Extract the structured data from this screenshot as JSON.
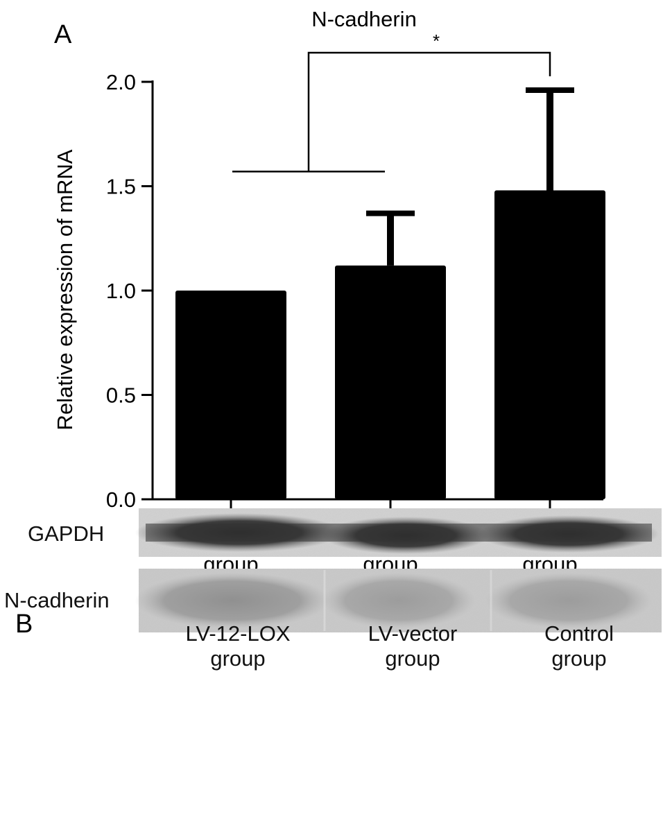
{
  "panel_a": {
    "label": "A"
  },
  "panel_b": {
    "label": "B",
    "lanes": [
      {
        "line1": "LV-12-LOX",
        "line2": "group"
      },
      {
        "line1": "LV-vector",
        "line2": "group"
      },
      {
        "line1": "Control",
        "line2": "group"
      }
    ],
    "rows": [
      {
        "label": "GAPDH"
      },
      {
        "label": "N-cadherin"
      }
    ]
  },
  "chart_data": {
    "type": "bar",
    "title": "N-cadherin",
    "ylabel": "Relative expression of mRNA",
    "xlabel": "",
    "categories": [
      [
        "Control",
        "group"
      ],
      [
        "LV-vector",
        "group"
      ],
      [
        "LV-12-LOX",
        "group"
      ]
    ],
    "values": [
      1.0,
      1.12,
      1.48
    ],
    "error_upper": [
      0,
      0.25,
      0.48
    ],
    "ylim": [
      0,
      2.0
    ],
    "yticks": [
      "0.0",
      "0.5",
      "1.0",
      "1.5",
      "2.0"
    ],
    "bar_color": "#000000",
    "grid": false,
    "significance": {
      "label": "*",
      "from_categories": [
        0,
        1
      ],
      "to_category": 2
    }
  }
}
